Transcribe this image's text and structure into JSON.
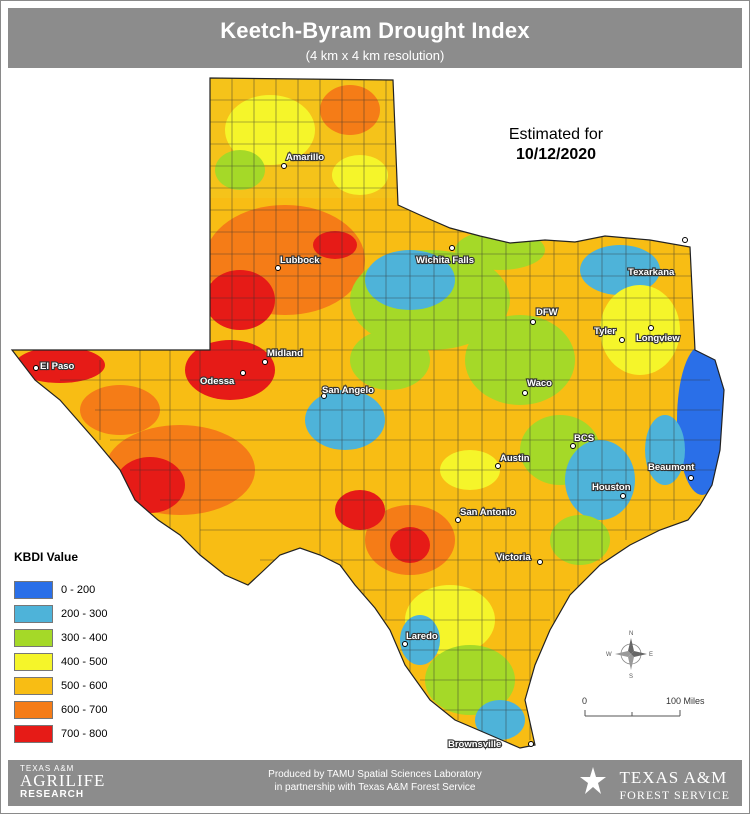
{
  "header": {
    "title": "Keetch-Byram Drought Index",
    "subtitle": "(4 km x 4 km resolution)"
  },
  "estimate": {
    "label": "Estimated for",
    "date": "10/12/2020"
  },
  "legend": {
    "title": "KBDI Value",
    "items": [
      {
        "label": "0 - 200",
        "color": "#2a6fe8"
      },
      {
        "label": "200 - 300",
        "color": "#4eb3d9"
      },
      {
        "label": "300 - 400",
        "color": "#a5d928"
      },
      {
        "label": "400 - 500",
        "color": "#f5f52a"
      },
      {
        "label": "500 - 600",
        "color": "#f8bd14"
      },
      {
        "label": "600 - 700",
        "color": "#f57c17"
      },
      {
        "label": "700 - 800",
        "color": "#e61b17"
      }
    ]
  },
  "cities": [
    {
      "name": "Amarillo"
    },
    {
      "name": "Lubbock"
    },
    {
      "name": "Wichita Falls"
    },
    {
      "name": "Texarkana"
    },
    {
      "name": "DFW"
    },
    {
      "name": "Tyler"
    },
    {
      "name": "Longview"
    },
    {
      "name": "El Paso"
    },
    {
      "name": "Midland"
    },
    {
      "name": "Odessa"
    },
    {
      "name": "San Angelo"
    },
    {
      "name": "Waco"
    },
    {
      "name": "BCS"
    },
    {
      "name": "Austin"
    },
    {
      "name": "Beaumont"
    },
    {
      "name": "Houston"
    },
    {
      "name": "San Antonio"
    },
    {
      "name": "Victoria"
    },
    {
      "name": "Laredo"
    },
    {
      "name": "Brownsville"
    }
  ],
  "scale": {
    "start": "0",
    "end": "100 Miles"
  },
  "compass": {
    "n": "N",
    "s": "S",
    "e": "E",
    "w": "W"
  },
  "footer": {
    "credit_line1": "Produced by TAMU Spatial Sciences Laboratory",
    "credit_line2": "in partnership with Texas A&M Forest Service",
    "agrilife_top": "TEXAS A&M",
    "agrilife_mid": "AGRILIFE",
    "agrilife_bottom": "RESEARCH",
    "tamu_line1": "TEXAS A&M",
    "tamu_line2": "FOREST SERVICE"
  }
}
